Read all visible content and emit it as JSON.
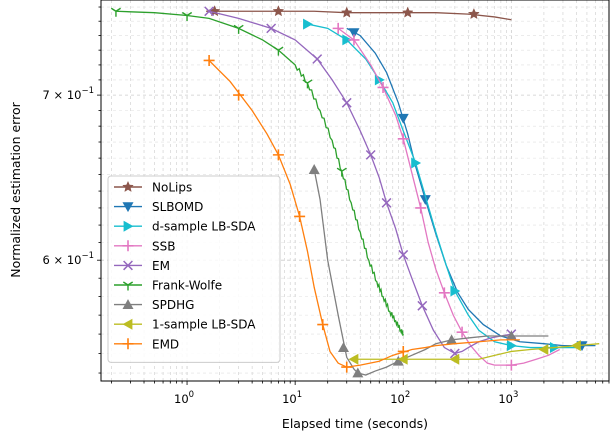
{
  "chart_data": {
    "type": "line",
    "title": "",
    "xlabel": "Elapsed time (seconds)",
    "ylabel": "Normalized estimation error",
    "xscale": "log",
    "yscale": "log",
    "xlim": [
      0.16,
      8000
    ],
    "ylim": [
      0.536,
      0.765
    ],
    "x_ticks": [
      {
        "value": 1,
        "base": "10",
        "exp": "0"
      },
      {
        "value": 10,
        "base": "10",
        "exp": "1"
      },
      {
        "value": 100,
        "base": "10",
        "exp": "2"
      },
      {
        "value": 1000,
        "base": "10",
        "exp": "3"
      }
    ],
    "y_ticks": [
      {
        "value": 0.6,
        "mant": "6",
        "base": "10",
        "exp": "−1"
      },
      {
        "value": 0.7,
        "mant": "7",
        "base": "10",
        "exp": "−1"
      }
    ],
    "grid": true,
    "legend_position": "lower-left",
    "series": [
      {
        "name": "NoLips",
        "color": "#8c564b",
        "marker": "star",
        "x": [
          1.5,
          3,
          7,
          15,
          30,
          60,
          100,
          200,
          400,
          700,
          1000
        ],
        "y": [
          0.757,
          0.757,
          0.757,
          0.757,
          0.756,
          0.756,
          0.756,
          0.756,
          0.755,
          0.753,
          0.751
        ],
        "mx": [
          1.8,
          7,
          30,
          110,
          450
        ],
        "my": [
          0.757,
          0.757,
          0.756,
          0.756,
          0.755
        ]
      },
      {
        "name": "SLBOMD",
        "color": "#1f77b4",
        "marker": "triangle-down",
        "x": [
          30,
          40,
          55,
          70,
          90,
          110,
          130,
          160,
          200,
          250,
          320,
          400,
          550,
          800,
          1200,
          2000,
          3000,
          4500,
          6000
        ],
        "y": [
          0.745,
          0.74,
          0.728,
          0.715,
          0.695,
          0.675,
          0.655,
          0.635,
          0.615,
          0.597,
          0.582,
          0.573,
          0.565,
          0.559,
          0.556,
          0.555,
          0.554,
          0.554,
          0.554
        ],
        "mx": [
          35,
          100,
          160,
          4500
        ],
        "my": [
          0.742,
          0.685,
          0.635,
          0.554
        ]
      },
      {
        "name": "d-sample LB-SDA",
        "color": "#17becf",
        "marker": "triangle-right",
        "x": [
          13,
          20,
          30,
          45,
          60,
          80,
          100,
          130,
          160,
          200,
          250,
          300,
          400,
          500,
          700,
          1000,
          1500,
          2500,
          4000
        ],
        "y": [
          0.748,
          0.745,
          0.737,
          0.724,
          0.71,
          0.695,
          0.677,
          0.657,
          0.637,
          0.616,
          0.597,
          0.583,
          0.57,
          0.562,
          0.556,
          0.554,
          0.553,
          0.553,
          0.553
        ],
        "mx": [
          13,
          30,
          60,
          130,
          300,
          1000,
          2500
        ],
        "my": [
          0.748,
          0.737,
          0.71,
          0.657,
          0.583,
          0.554,
          0.553
        ]
      },
      {
        "name": "SSB",
        "color": "#e377c2",
        "marker": "plus",
        "x": [
          25,
          35,
          50,
          65,
          85,
          100,
          120,
          145,
          170,
          200,
          240,
          290,
          350,
          420,
          500,
          600,
          700,
          850,
          1000,
          1300,
          1700,
          2200,
          2800
        ],
        "y": [
          0.745,
          0.737,
          0.72,
          0.705,
          0.687,
          0.672,
          0.651,
          0.63,
          0.61,
          0.595,
          0.582,
          0.57,
          0.561,
          0.554,
          0.549,
          0.545,
          0.544,
          0.544,
          0.544,
          0.545,
          0.547,
          0.549,
          0.552
        ],
        "mx": [
          25,
          35,
          65,
          100,
          145,
          240,
          350,
          1000
        ],
        "my": [
          0.745,
          0.737,
          0.705,
          0.672,
          0.63,
          0.582,
          0.561,
          0.544
        ]
      },
      {
        "name": "EM",
        "color": "#9467bd",
        "marker": "x",
        "x": [
          1.6,
          3,
          6,
          10,
          16,
          22,
          30,
          40,
          50,
          60,
          70,
          85,
          100,
          120,
          150,
          190,
          240,
          300,
          350,
          400,
          500,
          650,
          800,
          1000
        ],
        "y": [
          0.757,
          0.752,
          0.745,
          0.737,
          0.724,
          0.71,
          0.695,
          0.677,
          0.662,
          0.648,
          0.633,
          0.618,
          0.603,
          0.59,
          0.575,
          0.562,
          0.553,
          0.55,
          0.551,
          0.553,
          0.556,
          0.558,
          0.559,
          0.56
        ],
        "mx": [
          1.6,
          6,
          16,
          30,
          50,
          70,
          100,
          150,
          300,
          1000
        ],
        "my": [
          0.757,
          0.745,
          0.724,
          0.695,
          0.662,
          0.633,
          0.603,
          0.575,
          0.55,
          0.56
        ]
      },
      {
        "name": "Frank-Wolfe",
        "color": "#2ca02c",
        "marker": "tri-down",
        "x": [
          0.22,
          0.5,
          1,
          1.6,
          3,
          5,
          7,
          10,
          13,
          17,
          22,
          27,
          33,
          40,
          48,
          57,
          65,
          75,
          85,
          95,
          100
        ],
        "y": [
          0.757,
          0.756,
          0.754,
          0.752,
          0.745,
          0.737,
          0.73,
          0.72,
          0.708,
          0.69,
          0.671,
          0.652,
          0.633,
          0.616,
          0.6,
          0.588,
          0.58,
          0.572,
          0.567,
          0.562,
          0.56
        ],
        "mx": [
          0.22,
          1,
          3,
          7,
          13,
          27
        ],
        "my": [
          0.757,
          0.754,
          0.745,
          0.73,
          0.708,
          0.652
        ]
      },
      {
        "name": "SPDHG",
        "color": "#7f7f7f",
        "marker": "triangle-up",
        "x": [
          15,
          17,
          20,
          25,
          30,
          35,
          38,
          45,
          55,
          70,
          90,
          120,
          160,
          200,
          280,
          400,
          600,
          1000,
          1500,
          2200
        ],
        "y": [
          0.653,
          0.635,
          0.6,
          0.57,
          0.548,
          0.542,
          0.54,
          0.539,
          0.541,
          0.543,
          0.546,
          0.549,
          0.552,
          0.555,
          0.557,
          0.558,
          0.559,
          0.559,
          0.559,
          0.559
        ],
        "mx": [
          15,
          28,
          38,
          90,
          280,
          1000
        ],
        "my": [
          0.653,
          0.553,
          0.54,
          0.546,
          0.557,
          0.559
        ]
      },
      {
        "name": "1-sample LB-SDA",
        "color": "#bcbd22",
        "marker": "triangle-left",
        "x": [
          35,
          50,
          80,
          120,
          200,
          300,
          400,
          500,
          700,
          1000,
          1500,
          2500,
          4000,
          6500
        ],
        "y": [
          0.547,
          0.547,
          0.547,
          0.547,
          0.547,
          0.547,
          0.547,
          0.547,
          0.549,
          0.551,
          0.552,
          0.553,
          0.554,
          0.555
        ],
        "mx": [
          35,
          100,
          300,
          2000,
          4000
        ],
        "my": [
          0.547,
          0.547,
          0.547,
          0.552,
          0.554
        ]
      },
      {
        "name": "EMD",
        "color": "#ff7f0e",
        "marker": "plus",
        "x": [
          1.6,
          2.5,
          4,
          5.5,
          7,
          9,
          11,
          13,
          15,
          18,
          21,
          25,
          30,
          40,
          60,
          80,
          120,
          160,
          200,
          300,
          500,
          800,
          1200
        ],
        "y": [
          0.723,
          0.709,
          0.69,
          0.675,
          0.662,
          0.644,
          0.625,
          0.605,
          0.585,
          0.565,
          0.551,
          0.545,
          0.543,
          0.544,
          0.546,
          0.549,
          0.552,
          0.553,
          0.554,
          0.555,
          0.556,
          0.557,
          0.557
        ],
        "mx": [
          1.6,
          3,
          7,
          11,
          18,
          30,
          100
        ],
        "my": [
          0.723,
          0.7,
          0.662,
          0.625,
          0.565,
          0.543,
          0.551
        ]
      }
    ]
  }
}
